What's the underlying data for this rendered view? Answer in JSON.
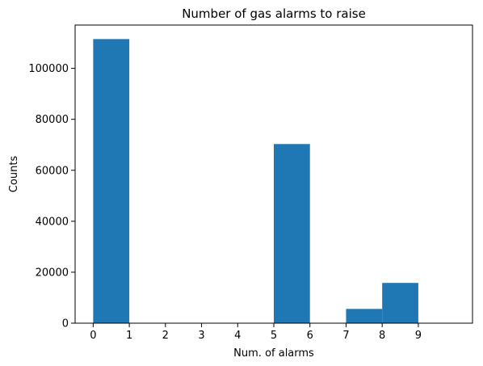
{
  "chart_data": {
    "type": "bar",
    "title": "Number of gas alarms to raise",
    "xlabel": "Num. of alarms",
    "ylabel": "Counts",
    "bins": [
      {
        "start": 0,
        "end": 1,
        "value": 111500
      },
      {
        "start": 1,
        "end": 2,
        "value": 0
      },
      {
        "start": 2,
        "end": 3,
        "value": 0
      },
      {
        "start": 3,
        "end": 4,
        "value": 0
      },
      {
        "start": 4,
        "end": 5,
        "value": 0
      },
      {
        "start": 5,
        "end": 6,
        "value": 70300
      },
      {
        "start": 6,
        "end": 7,
        "value": 0
      },
      {
        "start": 7,
        "end": 8,
        "value": 5600
      },
      {
        "start": 8,
        "end": 9,
        "value": 15800
      },
      {
        "start": 9,
        "end": 10,
        "value": 0
      }
    ],
    "xlim": [
      -0.5,
      10.5
    ],
    "ylim": [
      0,
      117000
    ],
    "xticks": [
      0,
      1,
      2,
      3,
      4,
      5,
      6,
      7,
      8,
      9
    ],
    "yticks": [
      0,
      20000,
      40000,
      60000,
      80000,
      100000
    ],
    "grid": false,
    "bar_color": "#1f77b4"
  }
}
